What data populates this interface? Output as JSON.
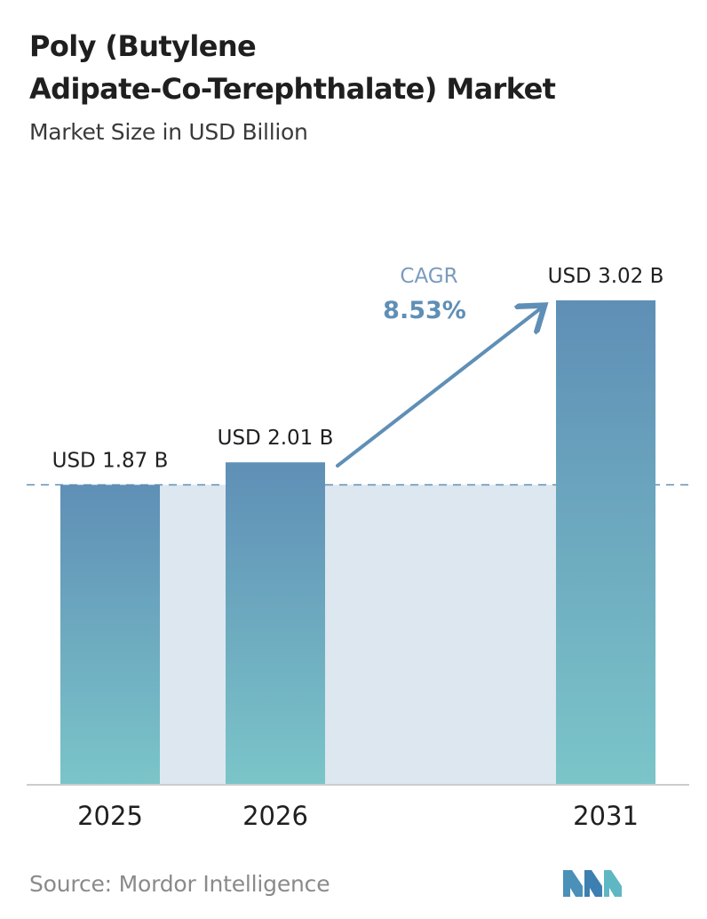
{
  "title_line1": "Poly (Butylene",
  "title_line2": "Adipate-Co-Terephthalate) Market",
  "subtitle": "Market Size in USD Billion",
  "source": "Source: Mordor Intelligence",
  "colors": {
    "bar_top": "#5f8fb6",
    "bar_bottom": "#7bc5c9",
    "band": "#dde7f0",
    "arrow": "#5f8fb6",
    "cagr_label": "#7a9bbd",
    "cagr_value": "#5f8fb6",
    "dash": "#5f8fb6",
    "axis": "#cccccc"
  },
  "chart_data": {
    "type": "bar",
    "categories": [
      "2025",
      "2026",
      "2031"
    ],
    "values": [
      1.87,
      2.01,
      3.02
    ],
    "value_labels": [
      "USD 1.87 B",
      "USD 2.01 B",
      "USD 3.02 B"
    ],
    "ylabel": "Market Size in USD Billion",
    "cagr_label": "CAGR",
    "cagr_value": "8.53%",
    "grid": false
  }
}
